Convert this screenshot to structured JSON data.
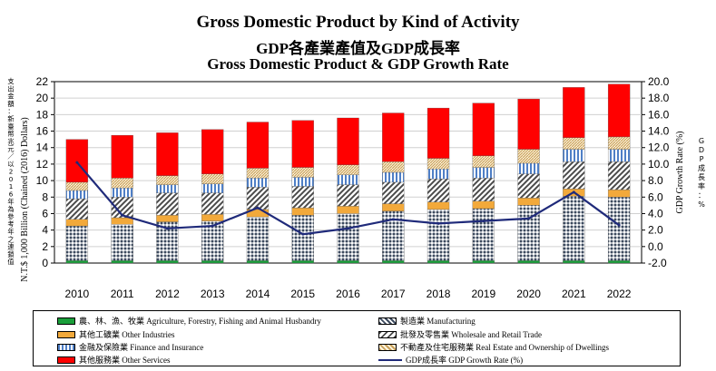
{
  "titles": {
    "line1": "Gross Domestic Product by Kind of Activity",
    "line2": "GDP各產業產值及GDP成長率",
    "line3": "Gross Domestic Product & GDP Growth Rate"
  },
  "left_axis": {
    "label_cn": "支出金額：新臺幣兆元／以2016年為參考年之連鎖值",
    "label_en": "N.T.$ 1,000 Billion (Chained (2016) Dollars)"
  },
  "right_axis": {
    "label_en": "GDP Growth Rate (%)",
    "label_cn": "GDP成長率：%"
  },
  "legend": [
    {
      "key": "agri",
      "label": "農、林、漁、牧業 Agriculture, Forestry, Fishing and Animal Husbandry"
    },
    {
      "key": "manu",
      "label": "製造業 Manufacturing"
    },
    {
      "key": "other_ind",
      "label": "其他工礦業 Other Industries"
    },
    {
      "key": "trade",
      "label": "批發及零售業 Wholesale and Retail Trade"
    },
    {
      "key": "finance",
      "label": "金融及保險業 Finance and Insurance"
    },
    {
      "key": "realestate",
      "label": "不動產及住宅服務業 Real Estate and Ownership of Dwellings"
    },
    {
      "key": "services",
      "label": "其他服務業 Other Services"
    },
    {
      "key": "growth",
      "label": "GDP成長率 GDP Growth Rate (%)"
    }
  ],
  "colors": {
    "agri": "#1a9e3a",
    "manu": "#3c4a5e",
    "other_ind": "#f2a93b",
    "trade": "#4a4a4a",
    "finance": "#4f7fc6",
    "realestate": "#c9a05a",
    "services": "#ff0000",
    "growth": "#1f2a7a"
  },
  "chart_data": {
    "type": "bar",
    "stacked": true,
    "categories": [
      "2010",
      "2011",
      "2012",
      "2013",
      "2014",
      "2015",
      "2016",
      "2017",
      "2018",
      "2019",
      "2020",
      "2021",
      "2022"
    ],
    "y_left": {
      "min": 0,
      "max": 22,
      "step": 2,
      "ticks": [
        "0",
        "2",
        "4",
        "6",
        "8",
        "10",
        "12",
        "14",
        "16",
        "18",
        "20",
        "22"
      ]
    },
    "y_right": {
      "min": -2,
      "max": 20,
      "step": 2,
      "ticks": [
        "-2.0",
        "0.0",
        "2.0",
        "4.0",
        "6.0",
        "8.0",
        "10.0",
        "12.0",
        "14.0",
        "16.0",
        "18.0",
        "20.0"
      ]
    },
    "grid": true,
    "series": [
      {
        "key": "agri",
        "values": [
          0.3,
          0.3,
          0.3,
          0.3,
          0.3,
          0.3,
          0.3,
          0.3,
          0.3,
          0.3,
          0.3,
          0.3,
          0.3
        ]
      },
      {
        "key": "manu",
        "values": [
          4.2,
          4.4,
          4.7,
          4.8,
          5.3,
          5.5,
          5.7,
          6.0,
          6.2,
          6.3,
          6.7,
          7.8,
          7.7
        ]
      },
      {
        "key": "other_ind",
        "values": [
          0.8,
          0.8,
          0.8,
          0.8,
          0.9,
          0.9,
          0.9,
          0.9,
          0.9,
          0.9,
          0.9,
          0.9,
          0.9
        ]
      },
      {
        "key": "trade",
        "values": [
          2.5,
          2.5,
          2.7,
          2.6,
          2.7,
          2.6,
          2.6,
          2.6,
          2.8,
          2.8,
          2.9,
          3.3,
          3.4
        ]
      },
      {
        "key": "finance",
        "values": [
          1.0,
          1.1,
          1.0,
          1.1,
          1.1,
          1.1,
          1.2,
          1.2,
          1.2,
          1.3,
          1.3,
          1.5,
          1.5
        ]
      },
      {
        "key": "realestate",
        "values": [
          1.0,
          1.2,
          1.1,
          1.2,
          1.2,
          1.2,
          1.2,
          1.3,
          1.3,
          1.4,
          1.7,
          1.4,
          1.5
        ]
      },
      {
        "key": "services",
        "values": [
          5.2,
          5.2,
          5.2,
          5.4,
          5.6,
          5.7,
          5.7,
          5.9,
          6.1,
          6.4,
          6.1,
          6.1,
          6.4
        ]
      }
    ],
    "line": {
      "key": "growth",
      "axis": "right",
      "values": [
        10.2,
        3.8,
        2.2,
        2.5,
        4.7,
        1.5,
        2.2,
        3.3,
        2.8,
        3.1,
        3.4,
        6.6,
        2.6
      ]
    }
  }
}
